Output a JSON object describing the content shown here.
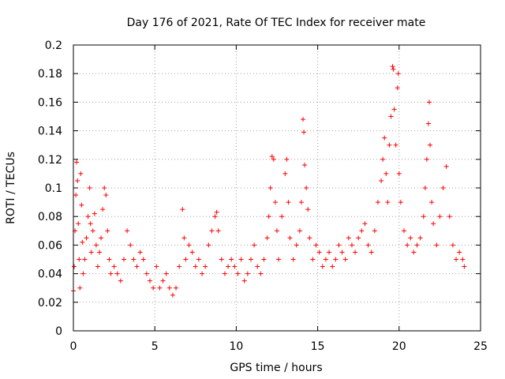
{
  "chart_data": {
    "type": "scatter",
    "title": "Day 176 of 2021, Rate Of TEC Index for receiver mate",
    "xlabel": "GPS time / hours",
    "ylabel": "ROTI / TECUs",
    "xlim": [
      0,
      25
    ],
    "ylim": [
      0,
      0.2
    ],
    "xticks": [
      "0",
      "5",
      "10",
      "15",
      "20",
      "25"
    ],
    "xtick_values": [
      0,
      5,
      10,
      15,
      20,
      25
    ],
    "yticks": [
      "0",
      "0.02",
      "0.04",
      "0.06",
      "0.08",
      "0.1",
      "0.12",
      "0.14",
      "0.16",
      "0.18",
      "0.2"
    ],
    "ytick_values": [
      0,
      0.02,
      0.04,
      0.06,
      0.08,
      0.1,
      0.12,
      0.14,
      0.16,
      0.18,
      0.2
    ],
    "grid": true,
    "marker": "+",
    "color": "#ff0000",
    "series": [
      {
        "points": [
          [
            0.0,
            0.028
          ],
          [
            0.05,
            0.045
          ],
          [
            0.1,
            0.07
          ],
          [
            0.15,
            0.095
          ],
          [
            0.2,
            0.118
          ],
          [
            0.25,
            0.105
          ],
          [
            0.3,
            0.075
          ],
          [
            0.35,
            0.05
          ],
          [
            0.4,
            0.03
          ],
          [
            0.45,
            0.11
          ],
          [
            0.5,
            0.088
          ],
          [
            0.55,
            0.062
          ],
          [
            0.6,
            0.04
          ],
          [
            0.7,
            0.05
          ],
          [
            0.8,
            0.065
          ],
          [
            0.9,
            0.08
          ],
          [
            1.0,
            0.1
          ],
          [
            1.05,
            0.075
          ],
          [
            1.1,
            0.055
          ],
          [
            1.2,
            0.07
          ],
          [
            1.3,
            0.082
          ],
          [
            1.4,
            0.06
          ],
          [
            1.5,
            0.045
          ],
          [
            1.6,
            0.055
          ],
          [
            1.7,
            0.065
          ],
          [
            1.8,
            0.085
          ],
          [
            1.9,
            0.1
          ],
          [
            2.0,
            0.095
          ],
          [
            2.1,
            0.07
          ],
          [
            2.2,
            0.05
          ],
          [
            2.3,
            0.04
          ],
          [
            2.5,
            0.045
          ],
          [
            2.7,
            0.04
          ],
          [
            2.9,
            0.035
          ],
          [
            3.1,
            0.05
          ],
          [
            3.3,
            0.07
          ],
          [
            3.5,
            0.06
          ],
          [
            3.7,
            0.05
          ],
          [
            3.9,
            0.045
          ],
          [
            4.1,
            0.055
          ],
          [
            4.3,
            0.05
          ],
          [
            4.5,
            0.04
          ],
          [
            4.7,
            0.035
          ],
          [
            4.9,
            0.03
          ],
          [
            5.1,
            0.045
          ],
          [
            5.3,
            0.03
          ],
          [
            5.5,
            0.035
          ],
          [
            5.7,
            0.04
          ],
          [
            5.9,
            0.03
          ],
          [
            6.1,
            0.025
          ],
          [
            6.3,
            0.03
          ],
          [
            6.5,
            0.045
          ],
          [
            6.7,
            0.085
          ],
          [
            6.8,
            0.065
          ],
          [
            6.9,
            0.05
          ],
          [
            7.1,
            0.06
          ],
          [
            7.3,
            0.055
          ],
          [
            7.5,
            0.045
          ],
          [
            7.7,
            0.05
          ],
          [
            7.9,
            0.04
          ],
          [
            8.1,
            0.045
          ],
          [
            8.3,
            0.06
          ],
          [
            8.5,
            0.07
          ],
          [
            8.7,
            0.08
          ],
          [
            8.8,
            0.083
          ],
          [
            8.9,
            0.07
          ],
          [
            9.1,
            0.05
          ],
          [
            9.3,
            0.04
          ],
          [
            9.5,
            0.045
          ],
          [
            9.7,
            0.05
          ],
          [
            9.9,
            0.045
          ],
          [
            10.1,
            0.04
          ],
          [
            10.3,
            0.05
          ],
          [
            10.5,
            0.035
          ],
          [
            10.7,
            0.04
          ],
          [
            10.9,
            0.05
          ],
          [
            11.1,
            0.06
          ],
          [
            11.3,
            0.045
          ],
          [
            11.5,
            0.04
          ],
          [
            11.7,
            0.05
          ],
          [
            11.9,
            0.065
          ],
          [
            12.0,
            0.08
          ],
          [
            12.1,
            0.1
          ],
          [
            12.2,
            0.122
          ],
          [
            12.3,
            0.12
          ],
          [
            12.4,
            0.09
          ],
          [
            12.5,
            0.07
          ],
          [
            12.6,
            0.05
          ],
          [
            12.8,
            0.08
          ],
          [
            13.0,
            0.11
          ],
          [
            13.1,
            0.12
          ],
          [
            13.2,
            0.09
          ],
          [
            13.3,
            0.065
          ],
          [
            13.5,
            0.05
          ],
          [
            13.7,
            0.06
          ],
          [
            13.9,
            0.07
          ],
          [
            14.0,
            0.09
          ],
          [
            14.1,
            0.148
          ],
          [
            14.15,
            0.139
          ],
          [
            14.2,
            0.116
          ],
          [
            14.3,
            0.1
          ],
          [
            14.4,
            0.085
          ],
          [
            14.5,
            0.065
          ],
          [
            14.7,
            0.05
          ],
          [
            14.9,
            0.06
          ],
          [
            15.1,
            0.055
          ],
          [
            15.3,
            0.045
          ],
          [
            15.5,
            0.05
          ],
          [
            15.7,
            0.055
          ],
          [
            15.9,
            0.045
          ],
          [
            16.1,
            0.05
          ],
          [
            16.3,
            0.06
          ],
          [
            16.5,
            0.055
          ],
          [
            16.7,
            0.05
          ],
          [
            16.9,
            0.065
          ],
          [
            17.1,
            0.06
          ],
          [
            17.3,
            0.055
          ],
          [
            17.5,
            0.065
          ],
          [
            17.7,
            0.07
          ],
          [
            17.9,
            0.075
          ],
          [
            18.1,
            0.06
          ],
          [
            18.3,
            0.055
          ],
          [
            18.5,
            0.07
          ],
          [
            18.7,
            0.09
          ],
          [
            18.9,
            0.105
          ],
          [
            19.0,
            0.12
          ],
          [
            19.1,
            0.135
          ],
          [
            19.2,
            0.11
          ],
          [
            19.3,
            0.09
          ],
          [
            19.4,
            0.13
          ],
          [
            19.5,
            0.15
          ],
          [
            19.6,
            0.185
          ],
          [
            19.65,
            0.183
          ],
          [
            19.7,
            0.155
          ],
          [
            19.8,
            0.13
          ],
          [
            19.9,
            0.17
          ],
          [
            19.95,
            0.18
          ],
          [
            20.0,
            0.11
          ],
          [
            20.1,
            0.09
          ],
          [
            20.3,
            0.07
          ],
          [
            20.5,
            0.06
          ],
          [
            20.7,
            0.065
          ],
          [
            20.9,
            0.055
          ],
          [
            21.1,
            0.06
          ],
          [
            21.3,
            0.065
          ],
          [
            21.5,
            0.08
          ],
          [
            21.6,
            0.1
          ],
          [
            21.7,
            0.12
          ],
          [
            21.8,
            0.145
          ],
          [
            21.85,
            0.16
          ],
          [
            21.9,
            0.13
          ],
          [
            22.0,
            0.09
          ],
          [
            22.1,
            0.075
          ],
          [
            22.3,
            0.06
          ],
          [
            22.5,
            0.08
          ],
          [
            22.7,
            0.1
          ],
          [
            22.9,
            0.115
          ],
          [
            23.1,
            0.08
          ],
          [
            23.3,
            0.06
          ],
          [
            23.5,
            0.05
          ],
          [
            23.7,
            0.055
          ],
          [
            23.9,
            0.05
          ],
          [
            24.0,
            0.045
          ]
        ]
      }
    ]
  }
}
